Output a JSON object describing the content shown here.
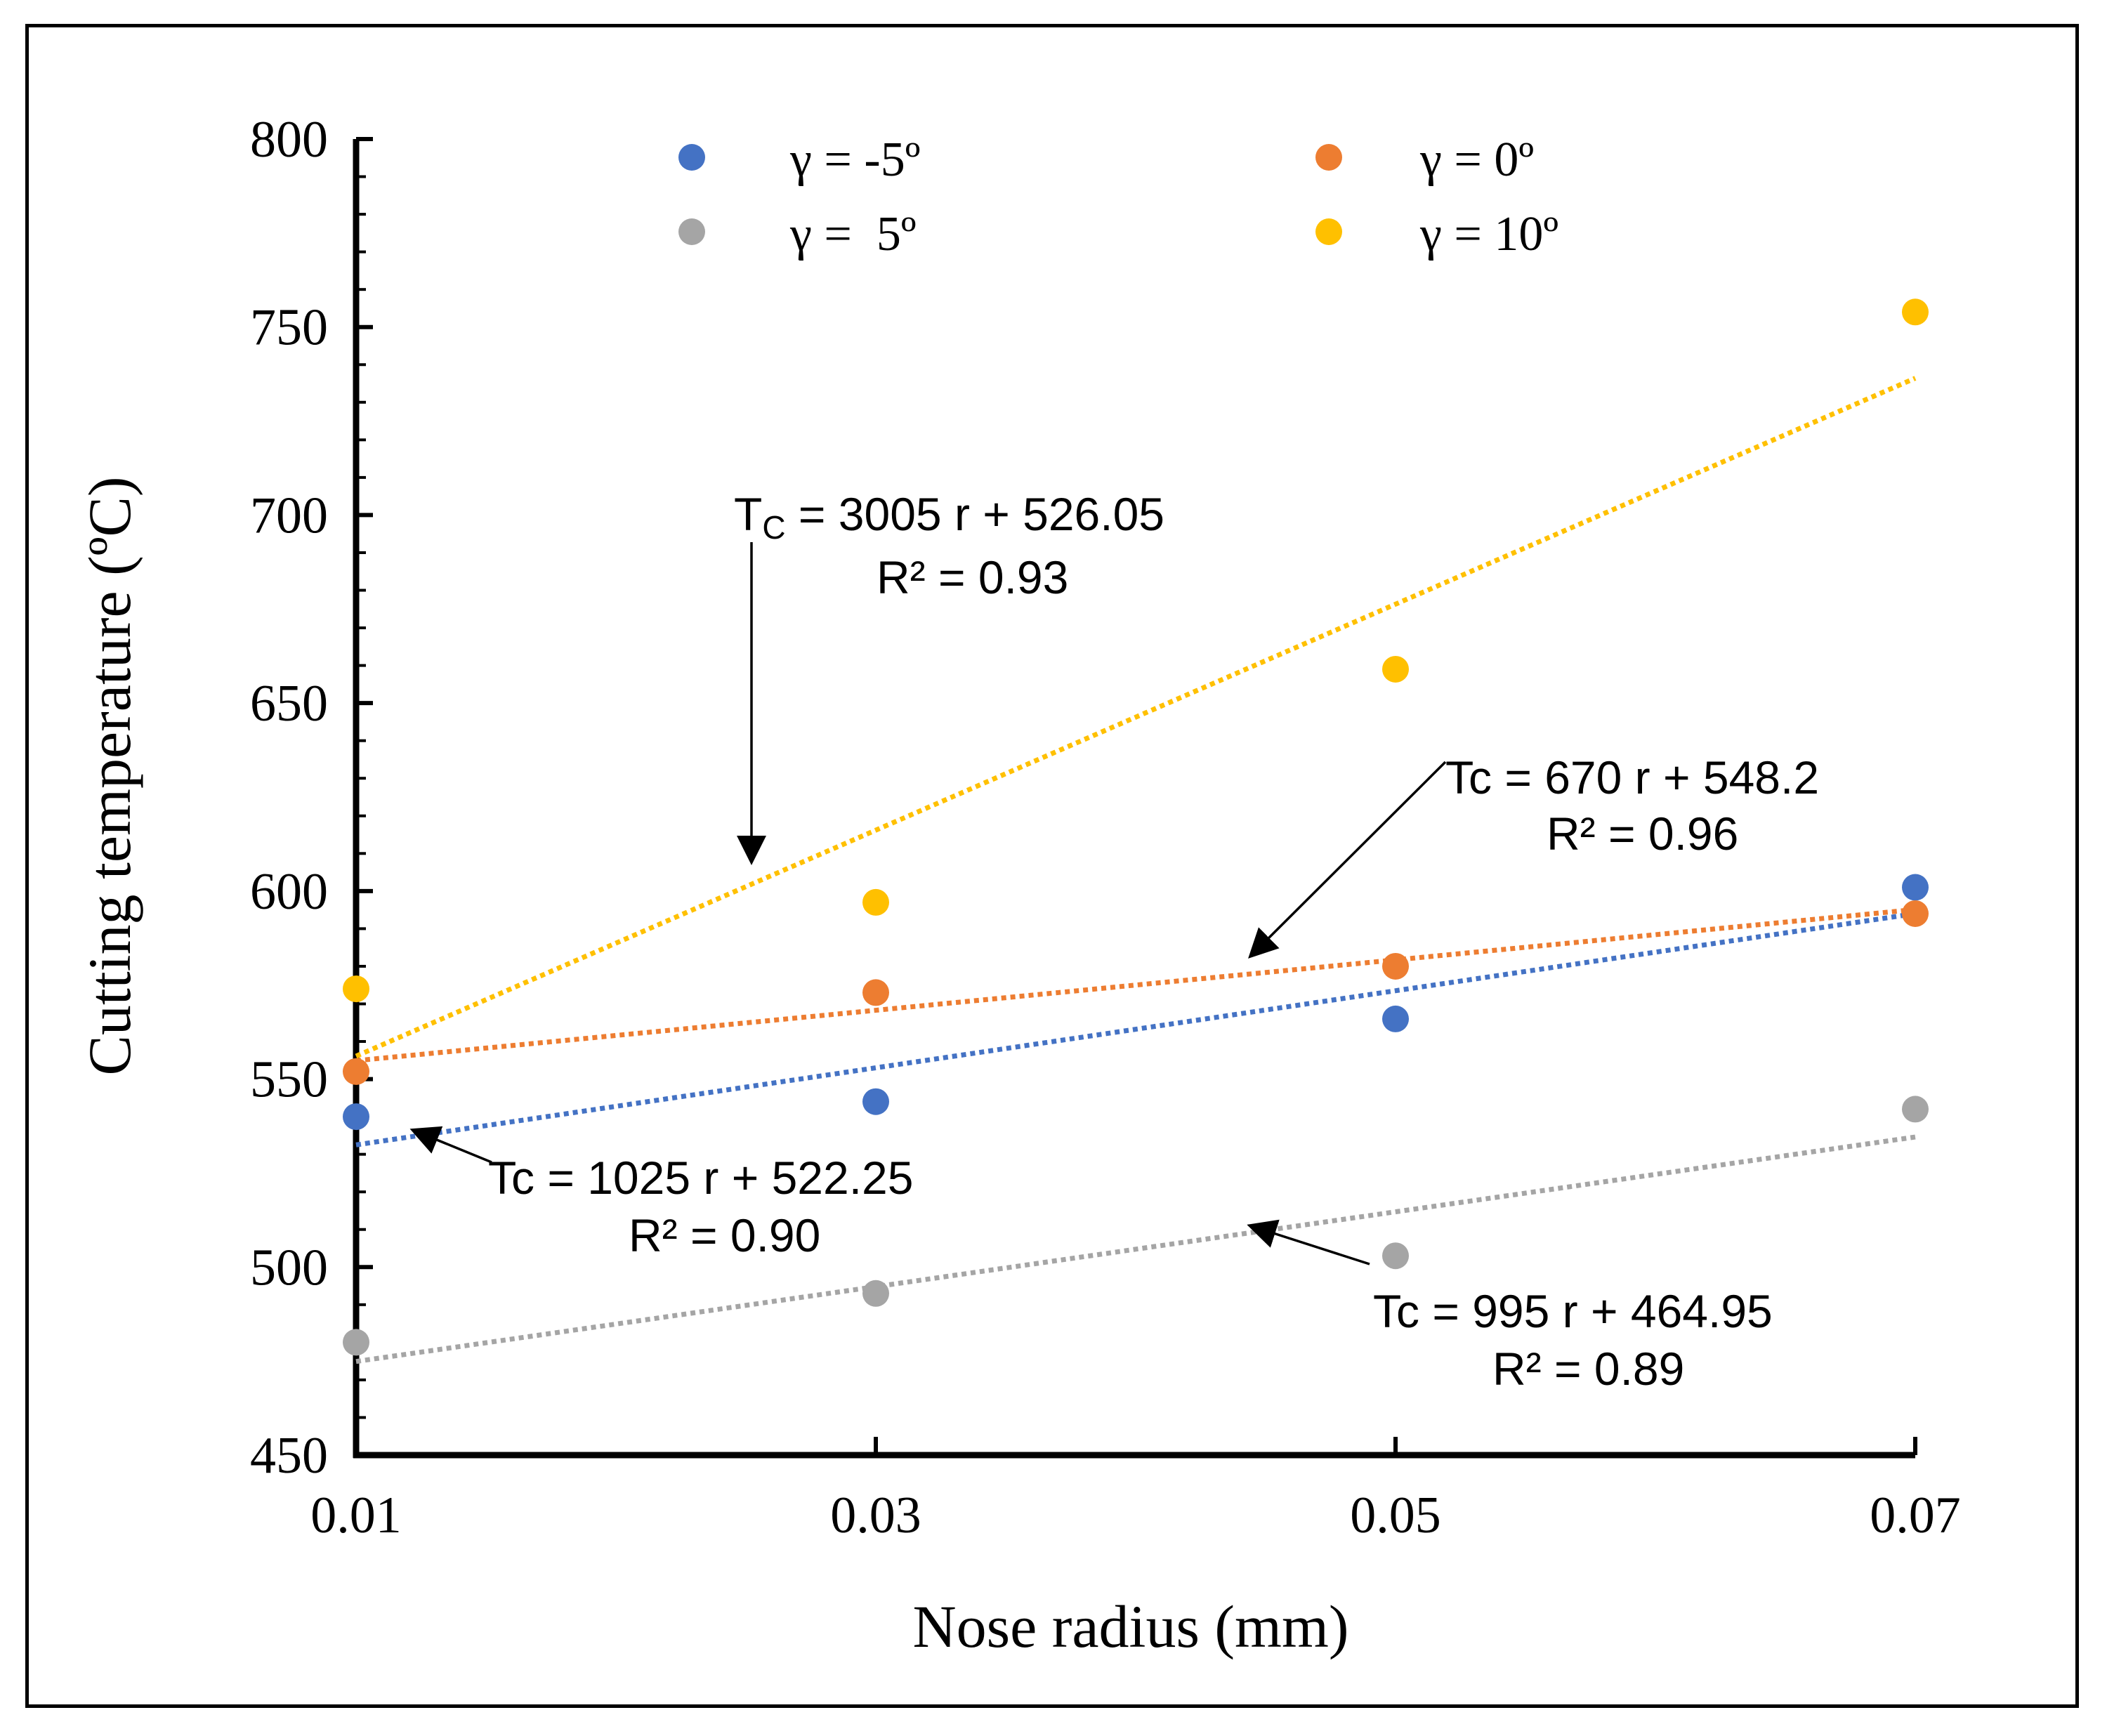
{
  "chart_data": {
    "type": "scatter",
    "xlabel": "Nose radius (mm)",
    "ylabel": "Cutting temperature (ºC)",
    "xlim": [
      0.01,
      0.07
    ],
    "ylim": [
      450,
      800
    ],
    "x_ticks": [
      "0.01",
      "0.03",
      "0.05",
      "0.07"
    ],
    "y_ticks": [
      "450",
      "500",
      "550",
      "600",
      "650",
      "700",
      "750",
      "800"
    ],
    "x": [
      0.01,
      0.03,
      0.05,
      0.07
    ],
    "grid": false,
    "legend_position": "top",
    "series": [
      {
        "name": "γ = -5º",
        "color": "#4472C4",
        "values": [
          540,
          544,
          566,
          601
        ],
        "trend": {
          "slope": 1025,
          "intercept": 522.25
        }
      },
      {
        "name": "γ = 0º",
        "color": "#ED7D31",
        "values": [
          552,
          573,
          580,
          594
        ],
        "trend": {
          "slope": 670,
          "intercept": 548.2
        }
      },
      {
        "name": "γ =  5º",
        "color": "#A5A5A5",
        "values": [
          480,
          493,
          503,
          542
        ],
        "trend": {
          "slope": 995,
          "intercept": 464.95
        }
      },
      {
        "name": "γ = 10º",
        "color": "#FFC000",
        "values": [
          574,
          597,
          659,
          754
        ],
        "trend": {
          "slope": 3005,
          "intercept": 526.05
        }
      }
    ],
    "annotations": [
      {
        "id": "a10",
        "eq_pre": "T",
        "eq_sub": "C",
        "eq_post": " = 3005 r + 526.05",
        "r2": "R² = 0.93"
      },
      {
        "id": "a0",
        "eq_pre": "Tc = 670 r + 548.2",
        "r2": "R² = 0.96"
      },
      {
        "id": "am5",
        "eq_pre": "Tc = 1025 r + 522.25",
        "r2": "R² = 0.90"
      },
      {
        "id": "a5",
        "eq_pre": "Tc = 995 r + 464.95",
        "r2": "R² = 0.89"
      }
    ]
  }
}
